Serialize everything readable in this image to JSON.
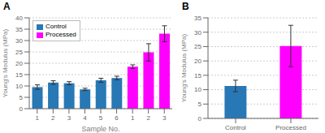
{
  "chart_data": [
    {
      "type": "bar",
      "title": "A",
      "xlabel": "Sample No.",
      "ylabel": "Young's Modulus (MPa)",
      "categories": [
        "1",
        "2",
        "3",
        "4",
        "5",
        "6",
        "1",
        "2",
        "3"
      ],
      "series": [
        {
          "name": "Control",
          "color": "#2878b5",
          "values": [
            9.5,
            11.5,
            11.2,
            8.5,
            12.5,
            13.5,
            null,
            null,
            null
          ],
          "errors": [
            1.0,
            0.8,
            0.7,
            0.5,
            0.9,
            0.8,
            null,
            null,
            null
          ]
        },
        {
          "name": "Processed",
          "color": "#ff00ff",
          "values": [
            null,
            null,
            null,
            null,
            null,
            null,
            18.5,
            24.8,
            33.0
          ],
          "errors": [
            null,
            null,
            null,
            null,
            null,
            null,
            0.8,
            3.8,
            3.5
          ]
        }
      ],
      "ylim": [
        0,
        40
      ],
      "yticks": [
        0,
        5,
        10,
        15,
        20,
        25,
        30,
        35,
        40
      ],
      "grid": true,
      "legend": "upper left"
    },
    {
      "type": "bar",
      "title": "B",
      "ylabel": "Young's Modulus (MPa)",
      "categories": [
        "Control",
        "Processed"
      ],
      "values": [
        11.3,
        25.2
      ],
      "errors": [
        2.0,
        7.2
      ],
      "colors": [
        "#2878b5",
        "#ff00ff"
      ],
      "ylim": [
        0,
        35
      ],
      "yticks": [
        0,
        5,
        10,
        15,
        20,
        25,
        30,
        35
      ],
      "grid": true
    }
  ]
}
